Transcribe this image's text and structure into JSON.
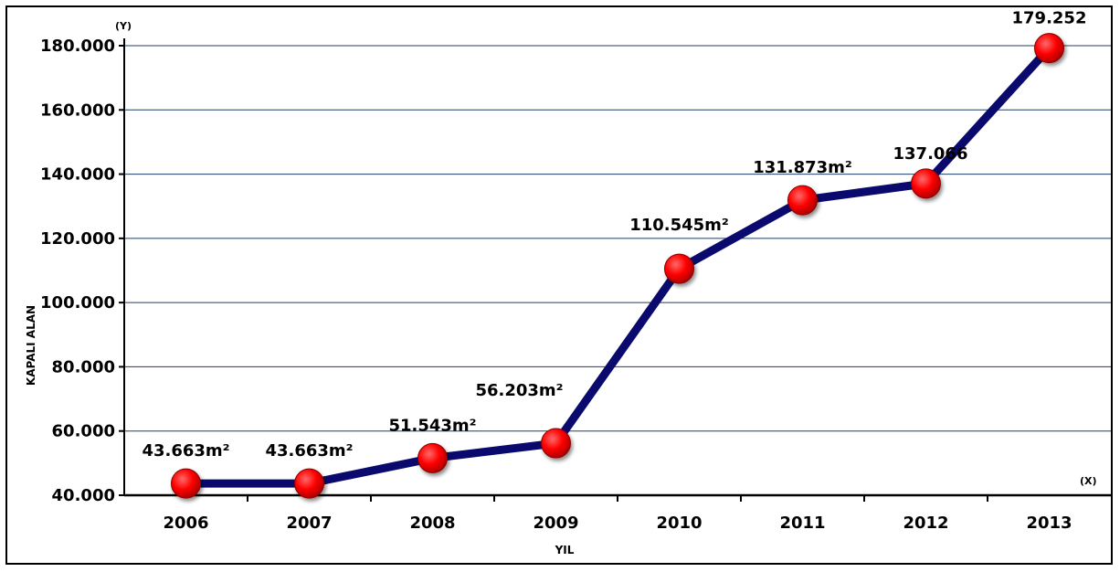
{
  "chart_data": {
    "type": "line",
    "title": "",
    "xlabel": "YIL",
    "ylabel": "KAPALI ALAN",
    "y_axis_marker": "(Y)",
    "x_axis_marker": "(X)",
    "categories": [
      "2006",
      "2007",
      "2008",
      "2009",
      "2010",
      "2011",
      "2012",
      "2013"
    ],
    "values": [
      43663,
      43663,
      51543,
      56203,
      110545,
      131873,
      137066,
      179252
    ],
    "data_labels": [
      "43.663m²",
      "43.663m²",
      "51.543m²",
      "56.203m²",
      "110.545m²",
      "131.873m²",
      "137.066",
      "179.252"
    ],
    "ylim": [
      40000,
      180000
    ],
    "yticks": [
      40000,
      60000,
      80000,
      100000,
      120000,
      140000,
      160000,
      180000
    ],
    "ytick_labels": [
      "40.000",
      "60.000",
      "80.000",
      "100.000",
      "120.000",
      "140.000",
      "160.000",
      "180.000"
    ],
    "grid": true,
    "legend": "none",
    "colors": {
      "line": "#0a0a6e",
      "marker": "#ff0000",
      "marker_stroke": "#8a0000",
      "grid": "#1f3f66"
    }
  }
}
